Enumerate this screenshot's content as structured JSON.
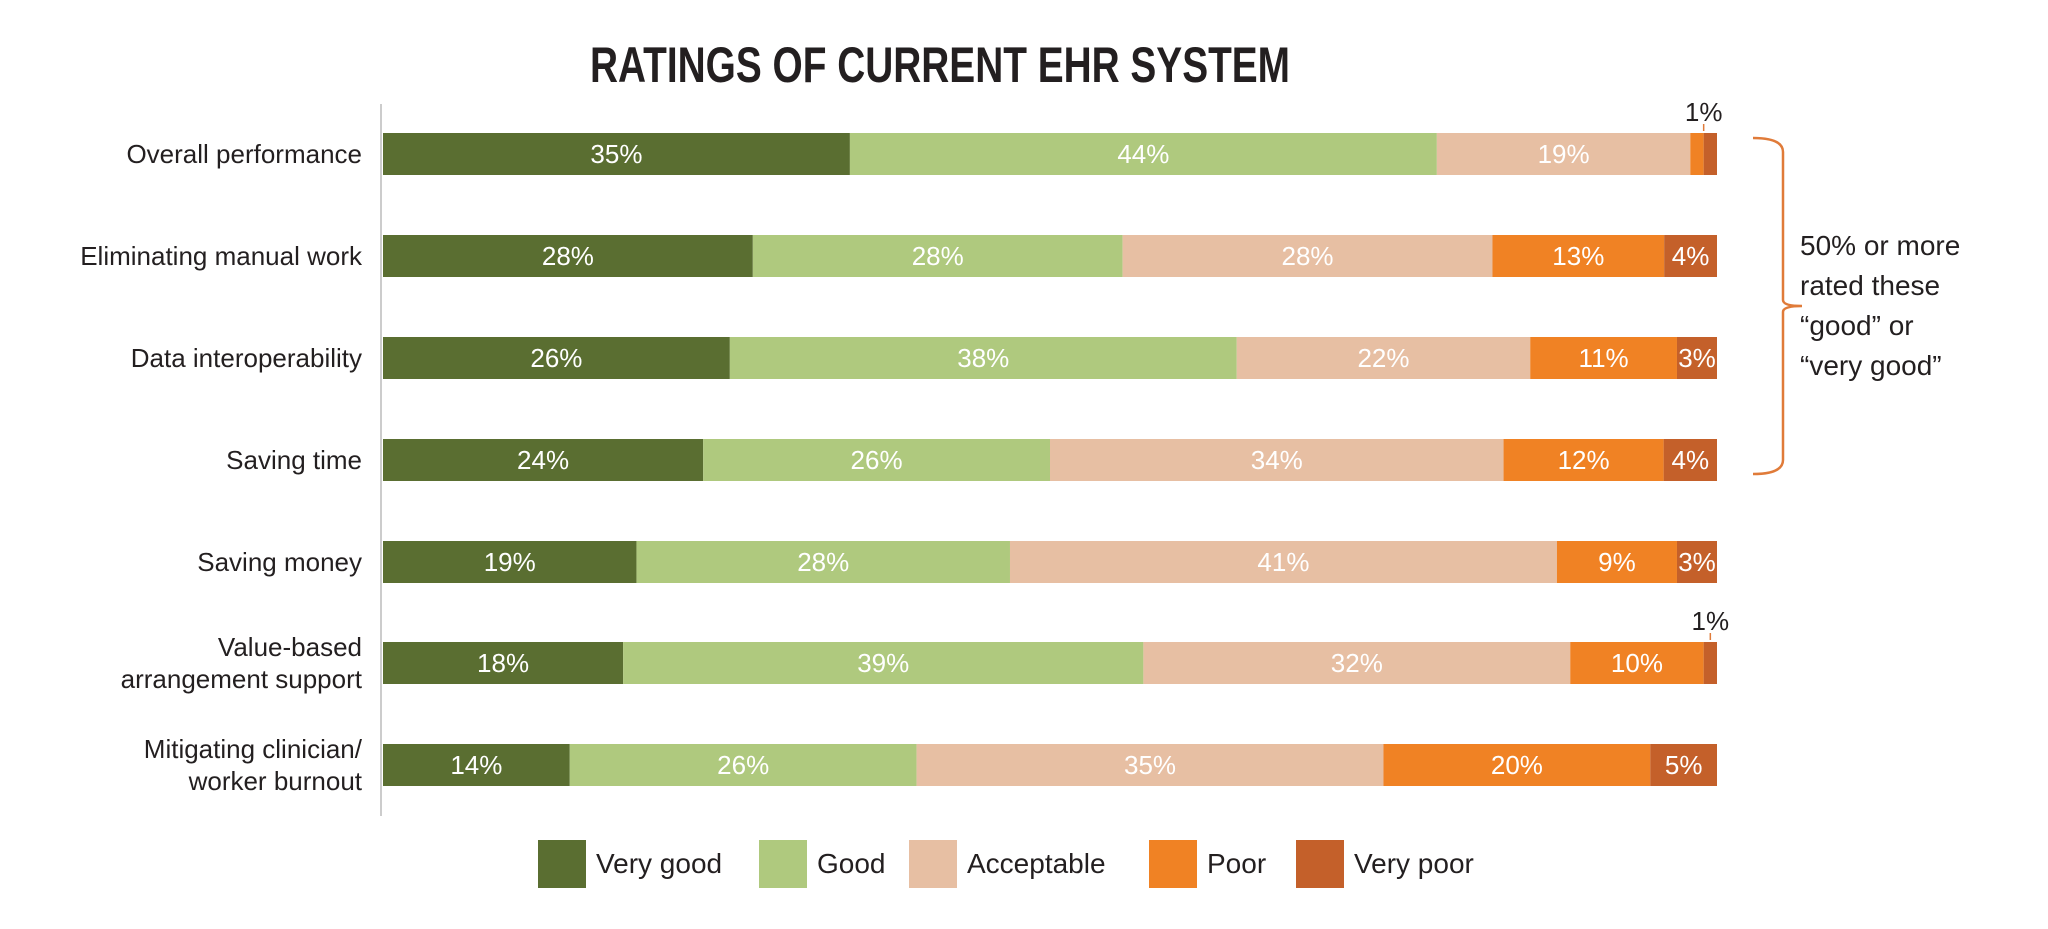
{
  "chart_data": {
    "type": "bar",
    "orientation": "horizontal",
    "stacked": true,
    "title": "RATINGS OF CURRENT EHR SYSTEM",
    "categories": [
      [
        "Overall performance"
      ],
      [
        "Eliminating manual work"
      ],
      [
        "Data interoperability"
      ],
      [
        "Saving time"
      ],
      [
        "Saving money"
      ],
      [
        "Value-based",
        "arrangement support"
      ],
      [
        "Mitigating clinician/",
        "worker burnout"
      ]
    ],
    "series": [
      {
        "name": "Very good",
        "color": "#5a6e31",
        "values": [
          35,
          28,
          26,
          24,
          19,
          18,
          14
        ]
      },
      {
        "name": "Good",
        "color": "#afc97e",
        "values": [
          44,
          28,
          38,
          26,
          28,
          39,
          26
        ]
      },
      {
        "name": "Acceptable",
        "color": "#e7bfa3",
        "values": [
          19,
          28,
          22,
          34,
          41,
          32,
          35
        ]
      },
      {
        "name": "Poor",
        "color": "#f08224",
        "values": [
          1,
          13,
          11,
          12,
          9,
          10,
          20
        ]
      },
      {
        "name": "Very poor",
        "color": "#c4602a",
        "values": [
          1,
          4,
          3,
          4,
          3,
          1,
          5
        ]
      }
    ],
    "value_suffix": "%",
    "xlim": [
      0,
      100
    ],
    "grid": false,
    "legend_position": "bottom",
    "annotation": {
      "text": [
        "50% or more",
        "rated these",
        "“good” or",
        "“very good”"
      ],
      "bracket_color": "#e07b39",
      "applies_to": [
        "Overall performance",
        "Eliminating manual work",
        "Data interoperability",
        "Saving time"
      ]
    }
  }
}
